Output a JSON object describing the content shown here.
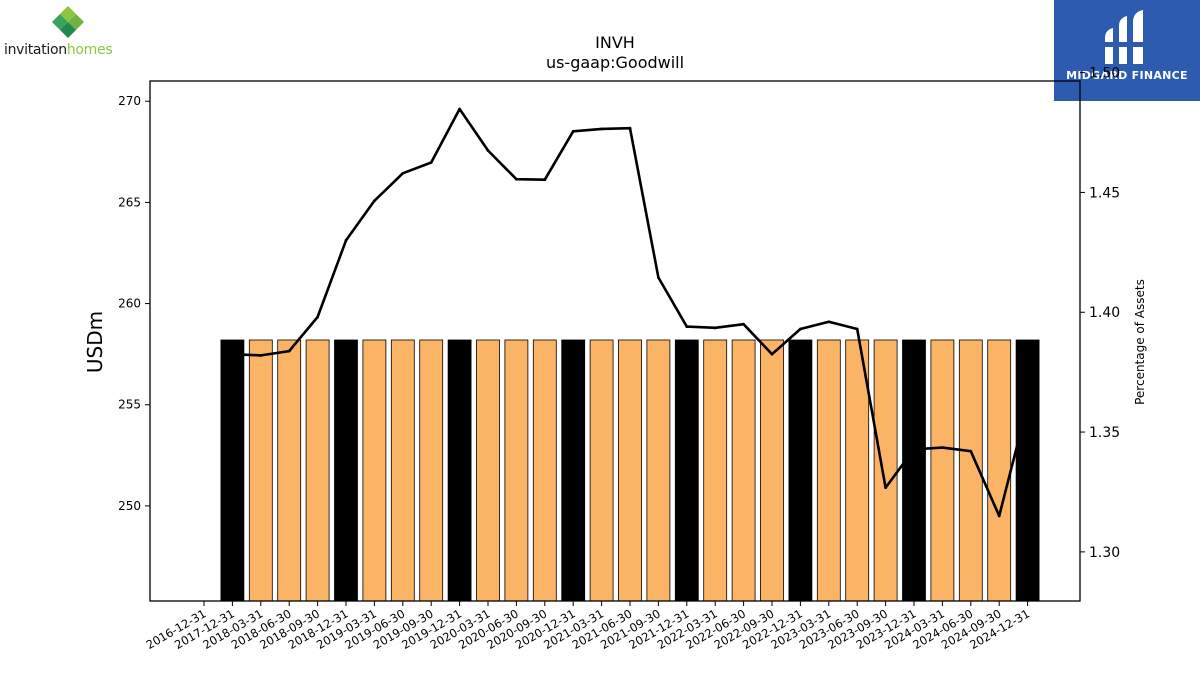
{
  "logos": {
    "left": {
      "word_dark": "invitation",
      "word_light": "homes",
      "accent": "#8cc63f"
    },
    "right": {
      "text": "MIDGARD FINANCE",
      "bg": "#2d5bb0"
    }
  },
  "chart_data": {
    "type": "bar",
    "title": "INVH",
    "subtitle": "us-gaap:Goodwill",
    "ylabel": "USDm",
    "y2label": "Percentage of Assets",
    "ylim": [
      245.3,
      271.0
    ],
    "y2lim": [
      1.2795,
      1.4965
    ],
    "yticks": [
      250,
      255,
      260,
      265,
      270
    ],
    "y2ticks": [
      1.3,
      1.35,
      1.4,
      1.45,
      1.5
    ],
    "y2tick_labels": [
      "1.30",
      "1.35",
      "1.40",
      "1.45",
      "1.50"
    ],
    "categories": [
      "2016-12-31",
      "2017-12-31",
      "2018-03-31",
      "2018-06-30",
      "2018-09-30",
      "2018-12-31",
      "2019-03-31",
      "2019-06-30",
      "2019-09-30",
      "2019-12-31",
      "2020-03-31",
      "2020-06-30",
      "2020-09-30",
      "2020-12-31",
      "2021-03-31",
      "2021-06-30",
      "2021-09-30",
      "2021-12-31",
      "2022-03-31",
      "2022-06-30",
      "2022-09-30",
      "2022-12-31",
      "2023-03-31",
      "2023-06-30",
      "2023-09-30",
      "2023-12-31",
      "2024-03-31",
      "2024-06-30",
      "2024-09-30",
      "2024-12-31"
    ],
    "series": [
      {
        "kind": "bar",
        "axis": "left",
        "values": [
          null,
          258.2,
          258.2,
          258.2,
          258.2,
          258.2,
          258.2,
          258.2,
          258.2,
          258.2,
          258.2,
          258.2,
          258.2,
          258.2,
          258.2,
          258.2,
          258.2,
          258.2,
          258.2,
          258.2,
          258.2,
          258.2,
          258.2,
          258.2,
          258.2,
          258.2,
          258.2,
          258.2,
          258.2,
          258.2
        ],
        "annual_color": "#000000",
        "quarter_color": "#fbb466",
        "annual_flags": [
          false,
          true,
          false,
          false,
          false,
          true,
          false,
          false,
          false,
          true,
          false,
          false,
          false,
          true,
          false,
          false,
          false,
          true,
          false,
          false,
          false,
          true,
          false,
          false,
          false,
          true,
          false,
          false,
          false,
          true
        ]
      },
      {
        "kind": "line",
        "axis": "right",
        "color": "#000000",
        "values": [
          null,
          1.3825,
          1.382,
          1.3838,
          1.398,
          1.43,
          1.4465,
          1.458,
          1.4625,
          1.4848,
          1.4675,
          1.4555,
          1.4553,
          1.4755,
          1.4765,
          1.4768,
          1.4145,
          1.394,
          1.3935,
          1.395,
          1.3825,
          1.393,
          1.396,
          1.393,
          1.3268,
          1.3428,
          1.3435,
          1.342,
          1.315,
          1.3615
        ]
      }
    ],
    "grid": false,
    "legend": "none"
  }
}
